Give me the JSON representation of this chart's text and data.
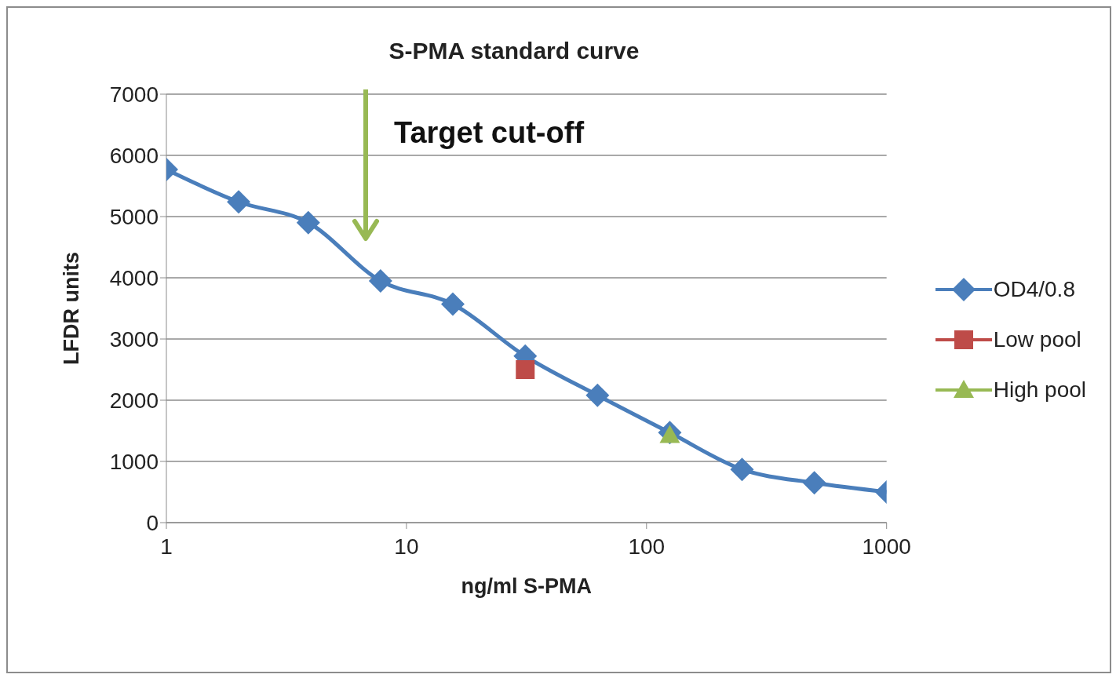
{
  "chart_data": {
    "type": "line",
    "title": "S-PMA standard curve",
    "xlabel": "ng/ml S-PMA",
    "ylabel": "LFDR units",
    "x": [
      1,
      2,
      3.9,
      7.8,
      15.6,
      31.25,
      62.5,
      125,
      250,
      500,
      1000
    ],
    "series": [
      {
        "name": "OD4/0.8",
        "color": "#4a7ebb",
        "marker": "diamond",
        "values": [
          5770,
          5240,
          4900,
          3950,
          3570,
          2720,
          2080,
          1470,
          870,
          650,
          500
        ]
      },
      {
        "name": "Low pool",
        "color": "#be4b48",
        "marker": "square",
        "type": "scatter",
        "x": [
          31.25
        ],
        "values": [
          2500
        ]
      },
      {
        "name": "High pool",
        "color": "#98b954",
        "marker": "triangle",
        "type": "scatter",
        "x": [
          125
        ],
        "values": [
          1430
        ]
      }
    ],
    "log": "x",
    "xlim": [
      1,
      1000
    ],
    "xticks": [
      1,
      10,
      100,
      1000
    ],
    "ylim": [
      0,
      7000
    ],
    "yticks": [
      0,
      1000,
      2000,
      3000,
      4000,
      5000,
      6000,
      7000
    ],
    "grid": "y",
    "legend": "right",
    "line_style": "solid",
    "annotations": [
      "Target cut-off"
    ]
  }
}
